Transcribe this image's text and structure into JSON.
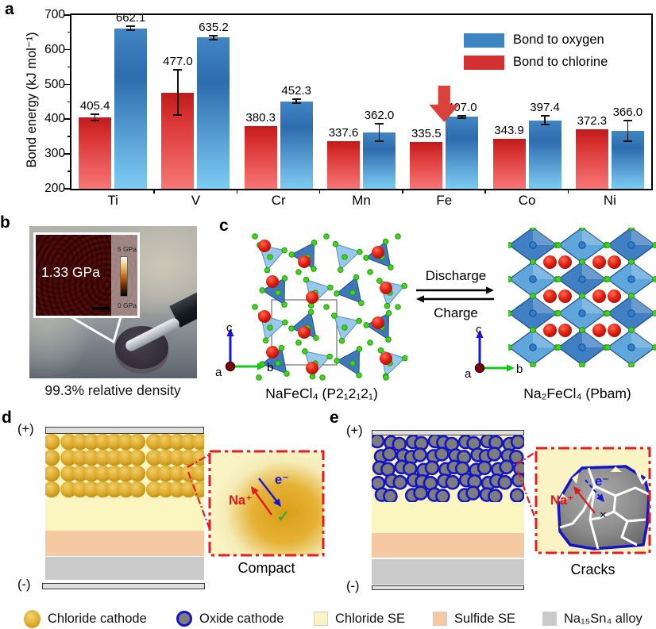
{
  "figure": {
    "panel_labels": {
      "a": "a",
      "b": "b",
      "c": "c",
      "d": "d",
      "e": "e"
    }
  },
  "chart_data": {
    "type": "bar",
    "title": "",
    "ylabel": "Bond energy (kJ mol⁻¹)",
    "xlabel": "",
    "ylim": [
      200,
      700
    ],
    "yticks": [
      200,
      300,
      400,
      500,
      600,
      700
    ],
    "grid": false,
    "legend_position": "top-right",
    "categories": [
      "Ti",
      "V",
      "Cr",
      "Mn",
      "Fe",
      "Co",
      "Ni"
    ],
    "series": [
      {
        "name": "Bond to chlorine",
        "color": "#d33131",
        "values": [
          405.4,
          477.0,
          380.3,
          337.6,
          335.5,
          343.9,
          372.3
        ],
        "errors": [
          10,
          65,
          0,
          0,
          0,
          0,
          0
        ]
      },
      {
        "name": "Bond to oxygen",
        "color": "#3d85c1",
        "values": [
          662.1,
          635.2,
          452.3,
          362.0,
          407.0,
          397.4,
          366.0
        ],
        "errors": [
          5,
          5,
          5,
          26,
          4,
          12,
          30
        ]
      }
    ],
    "legend": [
      {
        "label": "Bond to oxygen",
        "color": "#3d85c1"
      },
      {
        "label": "Bond to chlorine",
        "color": "#d33131"
      }
    ],
    "annotation": {
      "type": "down-arrow",
      "category": "Fe",
      "color": "#d8423a"
    }
  },
  "panel_b": {
    "modulus_value": "1.33 GPa",
    "scale_max": "5 GPa",
    "scale_min": "0 GPa",
    "caption": "99.3% relative density"
  },
  "panel_c": {
    "left_structure_label": "NaFeCl₄ (P2₁2₁2₁)",
    "right_structure_label": "Na₂FeCl₄ (Pbam)",
    "forward_label": "Discharge",
    "reverse_label": "Charge",
    "axis_labels": {
      "a": "a",
      "b": "b",
      "c": "c"
    }
  },
  "panel_d": {
    "positive_label": "(+)",
    "negative_label": "(-)",
    "ion_label": "Na⁺",
    "electron_label": "e⁻",
    "check_mark": "✓",
    "caption": "Compact"
  },
  "panel_e": {
    "positive_label": "(+)",
    "negative_label": "(-)",
    "ion_label": "Na⁺",
    "electron_label": "e⁻",
    "cross_mark": "×",
    "caption": "Cracks"
  },
  "bottom_legend": {
    "items": [
      {
        "label": "Chloride cathode",
        "swatch": "chloride-cathode"
      },
      {
        "label": "Oxide cathode",
        "swatch": "oxide-cathode"
      },
      {
        "label": "Chloride SE",
        "swatch": "chloride-se"
      },
      {
        "label": "Sulfide SE",
        "swatch": "sulfide-se"
      },
      {
        "label": "Na₁₅Sn₄ alloy",
        "swatch": "alloy"
      }
    ]
  },
  "colors": {
    "bond_oxygen": "#3d85c1",
    "bond_chlorine": "#d33131",
    "chloride_se": "#fbf5c0",
    "sulfide_se": "#f5c9a2",
    "alloy_layer": "#cacaca",
    "oxide_border": "#1414c8",
    "gold_core": "#d89d16",
    "callout_red": "#e81c1c"
  }
}
